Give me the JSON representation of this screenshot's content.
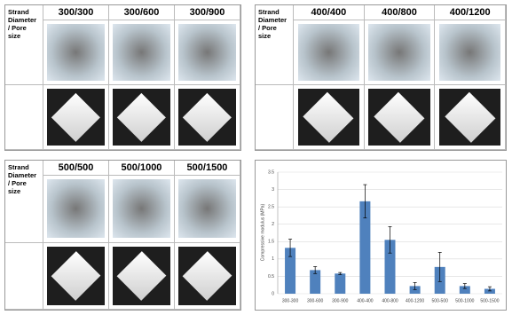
{
  "tables": [
    {
      "label": "Strand Diameter / Pore size",
      "columns": [
        "300/300",
        "300/600",
        "300/900"
      ]
    },
    {
      "label": "Strand Diameter / Pore size",
      "columns": [
        "400/400",
        "400/800",
        "400/1200"
      ]
    },
    {
      "label": "Strand Diameter / Pore size",
      "columns": [
        "500/500",
        "500/1000",
        "500/1500"
      ]
    }
  ],
  "chart_data": {
    "type": "bar",
    "y_label": "Compressive modulus (MPa)",
    "categories": [
      "300-300",
      "300-600",
      "300-900",
      "400-400",
      "400-800",
      "400-1200",
      "500-500",
      "500-1000",
      "500-1500"
    ],
    "values": [
      1.32,
      0.68,
      0.58,
      2.66,
      1.55,
      0.22,
      0.77,
      0.22,
      0.14
    ],
    "errors": [
      0.25,
      0.1,
      0.03,
      0.48,
      0.38,
      0.1,
      0.42,
      0.07,
      0.06
    ],
    "color": "#4f81bd",
    "ylim": [
      0,
      3.5
    ],
    "yticks": [
      0,
      0.5,
      1,
      1.5,
      2,
      2.5,
      3,
      3.5
    ],
    "grid": true
  }
}
